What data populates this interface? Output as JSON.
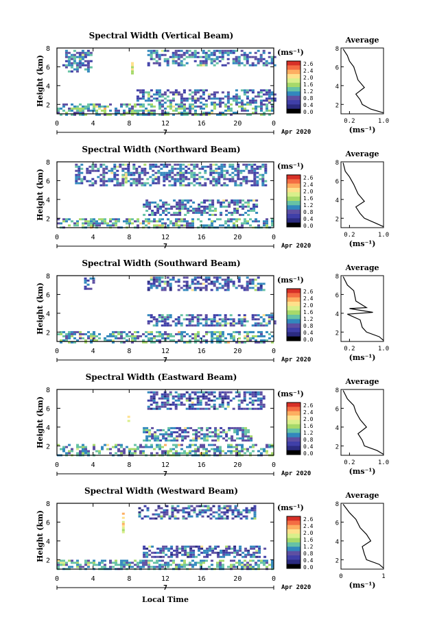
{
  "common": {
    "ylabel": "Height (km)",
    "yticks": [
      "2",
      "4",
      "6",
      "8"
    ],
    "xticks": [
      "0",
      "4",
      "8",
      "12",
      "16",
      "20",
      "0"
    ],
    "date_day": "7",
    "date_label": "Apr 2020",
    "unit_label": "(ms⁻¹)",
    "avg_title": "Average",
    "avg_unit": "(ms⁻¹)",
    "colorbar_ticks": [
      "2.6",
      "2.4",
      "2.0",
      "1.6",
      "1.2",
      "0.8",
      "0.4",
      "0.0"
    ],
    "colorbar_colors": [
      "#d73027",
      "#f46d43",
      "#fdae61",
      "#fee08b",
      "#d9ef8b",
      "#a6d96a",
      "#66c2a5",
      "#3288bd",
      "#5e4fa2",
      "#3f3fa8",
      "#2b2b80",
      "#000000"
    ],
    "xlabel": "Local Time"
  },
  "chart_data": [
    {
      "type": "heatmap",
      "title": "Spectral Width (Vertical Beam)",
      "xlabel": "",
      "ylabel": "Height (km)",
      "xlim": [
        0,
        24
      ],
      "ylim": [
        1,
        8
      ],
      "clim": [
        0,
        2.6
      ],
      "regions": [
        {
          "x": [
            0.6,
            3.8
          ],
          "y": [
            5.6,
            7.8
          ],
          "level": 0.6
        },
        {
          "x": [
            8.8,
            24
          ],
          "y": [
            2.2,
            3.6
          ],
          "level": 0.6
        },
        {
          "x": [
            0,
            24
          ],
          "y": [
            1.0,
            2.1
          ],
          "level": 0.9
        },
        {
          "x": [
            8.2,
            8.5
          ],
          "y": [
            5.3,
            6.5
          ],
          "level": 1.7
        },
        {
          "x": [
            10.0,
            24
          ],
          "y": [
            6.2,
            7.8
          ],
          "level": 0.6
        }
      ],
      "avg": {
        "xlim": [
          0,
          1.0
        ],
        "xticks": [
          "0.2",
          "1.0"
        ],
        "ylim": [
          1,
          8
        ],
        "yticks": [
          "2",
          "4",
          "6",
          "8"
        ],
        "points": [
          [
            0.05,
            7.9
          ],
          [
            0.15,
            7.2
          ],
          [
            0.2,
            6.6
          ],
          [
            0.3,
            6.0
          ],
          [
            0.35,
            5.3
          ],
          [
            0.4,
            4.6
          ],
          [
            0.55,
            3.8
          ],
          [
            0.35,
            3.1
          ],
          [
            0.45,
            2.5
          ],
          [
            0.5,
            2.0
          ],
          [
            0.7,
            1.5
          ],
          [
            1.0,
            1.1
          ]
        ]
      }
    },
    {
      "type": "heatmap",
      "title": "Spectral Width (Northward Beam)",
      "xlabel": "",
      "ylabel": "Height (km)",
      "xlim": [
        0,
        24
      ],
      "ylim": [
        1,
        8
      ],
      "clim": [
        0,
        2.6
      ],
      "regions": [
        {
          "x": [
            9.5,
            22
          ],
          "y": [
            2.4,
            4.0
          ],
          "level": 0.7
        },
        {
          "x": [
            0,
            24
          ],
          "y": [
            1.0,
            2.0
          ],
          "level": 0.9
        },
        {
          "x": [
            2.0,
            23
          ],
          "y": [
            5.4,
            7.8
          ],
          "level": 0.6
        },
        {
          "x": [
            7.5,
            7.8
          ],
          "y": [
            5.5,
            6.8
          ],
          "level": 1.7
        }
      ],
      "avg": {
        "xlim": [
          0,
          1.0
        ],
        "xticks": [
          "0.2",
          "1.0"
        ],
        "ylim": [
          1,
          8
        ],
        "yticks": [
          "2",
          "4",
          "6",
          "8"
        ],
        "points": [
          [
            0.05,
            7.9
          ],
          [
            0.1,
            7.0
          ],
          [
            0.2,
            6.4
          ],
          [
            0.3,
            5.6
          ],
          [
            0.4,
            4.6
          ],
          [
            0.55,
            3.8
          ],
          [
            0.35,
            3.2
          ],
          [
            0.45,
            2.5
          ],
          [
            0.55,
            2.0
          ],
          [
            0.8,
            1.5
          ],
          [
            1.0,
            1.1
          ]
        ]
      }
    },
    {
      "type": "heatmap",
      "title": "Spectral Width (Southward Beam)",
      "xlabel": "",
      "ylabel": "Height (km)",
      "xlim": [
        0,
        24
      ],
      "ylim": [
        1,
        8
      ],
      "clim": [
        0,
        2.6
      ],
      "regions": [
        {
          "x": [
            10,
            24
          ],
          "y": [
            2.6,
            3.9
          ],
          "level": 0.6
        },
        {
          "x": [
            0,
            24
          ],
          "y": [
            1.0,
            2.1
          ],
          "level": 0.9
        },
        {
          "x": [
            3.0,
            4.0
          ],
          "y": [
            6.5,
            7.8
          ],
          "level": 0.5
        },
        {
          "x": [
            10,
            23
          ],
          "y": [
            6.4,
            7.9
          ],
          "level": 0.5
        }
      ],
      "avg": {
        "xlim": [
          0,
          1.0
        ],
        "xticks": [
          "0.2",
          "1.0"
        ],
        "ylim": [
          1,
          8
        ],
        "yticks": [
          "2",
          "4",
          "6",
          "8"
        ],
        "points": [
          [
            0.05,
            7.9
          ],
          [
            0.15,
            7.0
          ],
          [
            0.3,
            6.4
          ],
          [
            0.35,
            5.3
          ],
          [
            0.6,
            4.6
          ],
          [
            0.2,
            4.5
          ],
          [
            0.75,
            4.1
          ],
          [
            0.15,
            3.9
          ],
          [
            0.45,
            3.3
          ],
          [
            0.5,
            2.5
          ],
          [
            0.6,
            2.0
          ],
          [
            0.9,
            1.5
          ],
          [
            1.0,
            1.1
          ]
        ]
      }
    },
    {
      "type": "heatmap",
      "title": "Spectral Width (Eastward Beam)",
      "xlabel": "",
      "ylabel": "Height (km)",
      "xlim": [
        0,
        24
      ],
      "ylim": [
        1,
        8
      ],
      "clim": [
        0,
        2.6
      ],
      "regions": [
        {
          "x": [
            9.5,
            21.5
          ],
          "y": [
            2.6,
            4.0
          ],
          "level": 0.7
        },
        {
          "x": [
            0,
            24
          ],
          "y": [
            1.0,
            2.2
          ],
          "level": 0.9
        },
        {
          "x": [
            10,
            23
          ],
          "y": [
            6.0,
            7.8
          ],
          "level": 0.5
        },
        {
          "x": [
            7.8,
            8.1
          ],
          "y": [
            4.6,
            5.2
          ],
          "level": 1.6
        }
      ],
      "avg": {
        "xlim": [
          0,
          1.0
        ],
        "xticks": [
          "0.2",
          "1.0"
        ],
        "ylim": [
          1,
          8
        ],
        "yticks": [
          "2",
          "4",
          "6",
          "8"
        ],
        "points": [
          [
            0.05,
            7.9
          ],
          [
            0.15,
            7.0
          ],
          [
            0.3,
            6.3
          ],
          [
            0.35,
            5.6
          ],
          [
            0.45,
            4.8
          ],
          [
            0.6,
            4.0
          ],
          [
            0.4,
            3.3
          ],
          [
            0.5,
            2.6
          ],
          [
            0.55,
            2.0
          ],
          [
            0.85,
            1.5
          ],
          [
            1.0,
            1.1
          ]
        ]
      }
    },
    {
      "type": "heatmap",
      "title": "Spectral Width (Westward Beam)",
      "xlabel": "Local Time",
      "ylabel": "Height (km)",
      "xlim": [
        0,
        24
      ],
      "ylim": [
        1,
        8
      ],
      "clim": [
        0,
        2.6
      ],
      "regions": [
        {
          "x": [
            9.5,
            23
          ],
          "y": [
            2.4,
            3.5
          ],
          "level": 0.5
        },
        {
          "x": [
            0,
            24
          ],
          "y": [
            1.0,
            2.0
          ],
          "level": 0.9
        },
        {
          "x": [
            9,
            22
          ],
          "y": [
            6.4,
            7.8
          ],
          "level": 0.5
        },
        {
          "x": [
            7.2,
            7.5
          ],
          "y": [
            5.0,
            7.0
          ],
          "level": 1.7
        }
      ],
      "avg": {
        "xlim": [
          0,
          1
        ],
        "xticks": [
          "0",
          "1"
        ],
        "ylim": [
          1,
          8
        ],
        "yticks": [
          "2",
          "4",
          "6",
          "8"
        ],
        "points": [
          [
            0.05,
            7.9
          ],
          [
            0.2,
            7.0
          ],
          [
            0.35,
            6.3
          ],
          [
            0.45,
            5.4
          ],
          [
            0.6,
            4.7
          ],
          [
            0.7,
            4.0
          ],
          [
            0.5,
            3.4
          ],
          [
            0.55,
            2.6
          ],
          [
            0.6,
            2.0
          ],
          [
            0.9,
            1.5
          ],
          [
            1.0,
            1.1
          ]
        ]
      }
    }
  ]
}
